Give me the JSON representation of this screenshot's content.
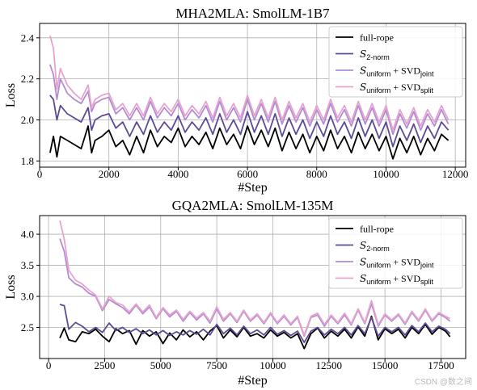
{
  "watermark": "CSDN @数之间",
  "colors": {
    "full-rope": "#000000",
    "s2norm": "#5e4a96",
    "joint": "#b38cd2",
    "split": "#e7a3cf",
    "grid": "#b0b0b0"
  },
  "chart_data": [
    {
      "type": "line",
      "title": "MHA2MLA: SmolLM-1B7",
      "xlabel": "#Step",
      "ylabel": "Loss",
      "xlim": [
        0,
        12300
      ],
      "ylim": [
        1.77,
        2.47
      ],
      "xticks": [
        0,
        2000,
        4000,
        6000,
        8000,
        10000,
        12000
      ],
      "yticks": [
        1.8,
        2.0,
        2.2,
        2.4
      ],
      "ytick_labels": [
        "1.8",
        "2.0",
        "2.2",
        "2.4"
      ],
      "grid": true,
      "legend": "top-right",
      "x": [
        300,
        400,
        500,
        600,
        800,
        1000,
        1200,
        1400,
        1500,
        1600,
        1800,
        2000,
        2200,
        2400,
        2600,
        2800,
        3000,
        3200,
        3400,
        3600,
        3800,
        4000,
        4200,
        4400,
        4600,
        4800,
        5000,
        5200,
        5400,
        5600,
        5800,
        6000,
        6200,
        6400,
        6600,
        6800,
        7000,
        7200,
        7400,
        7600,
        7800,
        8000,
        8200,
        8400,
        8600,
        8800,
        9000,
        9200,
        9400,
        9600,
        9800,
        10000,
        10200,
        10400,
        10600,
        10800,
        11000,
        11200,
        11400,
        11600,
        11800
      ],
      "series": [
        {
          "name": "full-rope",
          "color_key": "full-rope",
          "values": [
            1.84,
            1.92,
            1.82,
            1.92,
            1.9,
            1.88,
            1.86,
            1.97,
            1.84,
            1.9,
            1.92,
            1.95,
            1.87,
            1.9,
            1.83,
            1.92,
            1.84,
            1.95,
            1.87,
            1.92,
            1.89,
            1.96,
            1.87,
            1.92,
            1.88,
            1.94,
            1.86,
            1.96,
            1.88,
            1.93,
            1.86,
            1.97,
            1.88,
            1.95,
            1.87,
            1.96,
            1.85,
            1.94,
            1.86,
            1.93,
            1.84,
            1.92,
            1.85,
            1.95,
            1.86,
            1.92,
            1.84,
            1.94,
            1.86,
            1.93,
            1.85,
            1.92,
            1.81,
            1.91,
            1.84,
            1.92,
            1.83,
            1.91,
            1.85,
            1.93,
            1.9
          ]
        },
        {
          "name": "S2-norm",
          "legend_base": "S",
          "legend_sub": "2-norm",
          "legend_suffix": "",
          "legend_sub2": "",
          "color_key": "s2norm",
          "values": [
            2.12,
            2.1,
            2.0,
            2.07,
            2.03,
            2.01,
            1.99,
            2.06,
            1.95,
            2.0,
            2.02,
            2.03,
            1.96,
            1.99,
            1.92,
            1.99,
            1.93,
            2.02,
            1.94,
            1.99,
            1.95,
            2.02,
            1.94,
            1.99,
            1.95,
            2.01,
            1.93,
            2.03,
            1.94,
            2.0,
            1.93,
            2.04,
            1.94,
            2.02,
            1.93,
            2.03,
            1.92,
            2.01,
            1.93,
            2.0,
            1.91,
            1.99,
            1.92,
            2.02,
            1.93,
            1.99,
            1.91,
            2.01,
            1.92,
            2.0,
            1.91,
            1.99,
            1.87,
            1.97,
            1.9,
            1.98,
            1.89,
            1.97,
            1.91,
            1.99,
            1.95
          ]
        },
        {
          "name": "Suniform + SVDjoint",
          "legend_base": "S",
          "legend_sub": "uniform",
          "legend_suffix": " + SVD",
          "legend_sub2": "joint",
          "color_key": "joint",
          "values": [
            2.27,
            2.22,
            2.1,
            2.2,
            2.13,
            2.1,
            2.08,
            2.14,
            2.04,
            2.08,
            2.1,
            2.11,
            2.03,
            2.06,
            2.0,
            2.06,
            2.0,
            2.09,
            2.01,
            2.06,
            2.02,
            2.08,
            2.0,
            2.05,
            2.01,
            2.07,
            1.99,
            2.09,
            2.0,
            2.06,
            1.99,
            2.1,
            2.0,
            2.08,
            1.99,
            2.09,
            1.98,
            2.07,
            1.99,
            2.06,
            1.97,
            2.05,
            1.98,
            2.08,
            1.99,
            2.05,
            1.97,
            2.07,
            1.98,
            2.06,
            1.97,
            2.05,
            1.93,
            2.03,
            1.96,
            2.04,
            1.95,
            2.03,
            1.97,
            2.05,
            1.98
          ]
        },
        {
          "name": "Suniform + SVDsplit",
          "legend_base": "S",
          "legend_sub": "uniform",
          "legend_suffix": " + SVD",
          "legend_sub2": "split",
          "color_key": "split",
          "values": [
            2.41,
            2.35,
            2.15,
            2.25,
            2.17,
            2.13,
            2.1,
            2.17,
            2.06,
            2.1,
            2.12,
            2.13,
            2.05,
            2.08,
            2.02,
            2.08,
            2.02,
            2.11,
            2.03,
            2.08,
            2.04,
            2.1,
            2.02,
            2.07,
            2.03,
            2.09,
            2.01,
            2.11,
            2.02,
            2.08,
            2.01,
            2.12,
            2.02,
            2.1,
            2.01,
            2.11,
            2.0,
            2.09,
            2.01,
            2.08,
            1.99,
            2.07,
            2.0,
            2.1,
            2.01,
            2.07,
            1.99,
            2.09,
            2.0,
            2.08,
            1.99,
            2.07,
            1.95,
            2.05,
            1.98,
            2.06,
            1.97,
            2.05,
            1.99,
            2.07,
            2.0
          ]
        }
      ]
    },
    {
      "type": "line",
      "title": "GQA2MLA: SmolLM-135M",
      "xlabel": "#Step",
      "ylabel": "Loss",
      "xlim": [
        -400,
        18600
      ],
      "ylim": [
        2.0,
        4.3
      ],
      "xticks": [
        0,
        2500,
        5000,
        7500,
        10000,
        12500,
        15000,
        17500
      ],
      "yticks": [
        2.5,
        3.0,
        3.5,
        4.0
      ],
      "ytick_labels": [
        "2.5",
        "3.0",
        "3.5",
        "4.0"
      ],
      "grid": true,
      "legend": "top-right",
      "x": [
        500,
        700,
        900,
        1200,
        1500,
        1800,
        2100,
        2400,
        2700,
        3000,
        3300,
        3600,
        3900,
        4200,
        4500,
        4800,
        5100,
        5400,
        5700,
        6000,
        6300,
        6600,
        6900,
        7200,
        7500,
        7800,
        8100,
        8400,
        8700,
        9000,
        9300,
        9600,
        9900,
        10200,
        10500,
        10800,
        11100,
        11400,
        11700,
        12000,
        12300,
        12600,
        12900,
        13200,
        13500,
        13800,
        14100,
        14400,
        14700,
        15000,
        15300,
        15600,
        15900,
        16200,
        16500,
        16800,
        17100,
        17400,
        17700,
        17900
      ],
      "series": [
        {
          "name": "full-rope",
          "color_key": "full-rope",
          "values": [
            2.33,
            2.49,
            2.3,
            2.27,
            2.43,
            2.4,
            2.47,
            2.36,
            2.27,
            2.48,
            2.4,
            2.45,
            2.23,
            2.45,
            2.36,
            2.43,
            2.24,
            2.41,
            2.3,
            2.46,
            2.35,
            2.43,
            2.3,
            2.44,
            2.53,
            2.33,
            2.46,
            2.35,
            2.5,
            2.36,
            2.4,
            2.33,
            2.46,
            2.36,
            2.42,
            2.33,
            2.4,
            2.16,
            2.4,
            2.49,
            2.33,
            2.44,
            2.36,
            2.47,
            2.33,
            2.51,
            2.36,
            2.68,
            2.3,
            2.48,
            2.4,
            2.47,
            2.33,
            2.5,
            2.4,
            2.55,
            2.39,
            2.5,
            2.44,
            2.35
          ]
        },
        {
          "name": "S2-norm",
          "legend_base": "S",
          "legend_sub": "2-norm",
          "legend_suffix": "",
          "legend_sub2": "",
          "color_key": "s2norm",
          "values": [
            2.87,
            2.85,
            2.47,
            2.58,
            2.52,
            2.43,
            2.5,
            2.42,
            2.57,
            2.45,
            2.5,
            2.42,
            2.48,
            2.4,
            2.46,
            2.38,
            2.45,
            2.37,
            2.43,
            2.38,
            2.45,
            2.39,
            2.47,
            2.38,
            2.55,
            2.4,
            2.49,
            2.38,
            2.52,
            2.4,
            2.46,
            2.38,
            2.5,
            2.39,
            2.45,
            2.37,
            2.44,
            2.26,
            2.44,
            2.5,
            2.38,
            2.47,
            2.4,
            2.5,
            2.38,
            2.53,
            2.4,
            2.66,
            2.36,
            2.5,
            2.43,
            2.5,
            2.38,
            2.53,
            2.43,
            2.57,
            2.43,
            2.52,
            2.47,
            2.4
          ]
        },
        {
          "name": "Suniform + SVDjoint",
          "legend_base": "S",
          "legend_sub": "uniform",
          "legend_suffix": " + SVD",
          "legend_sub2": "joint",
          "color_key": "joint",
          "values": [
            3.93,
            3.72,
            3.3,
            3.2,
            3.15,
            3.05,
            3.0,
            2.77,
            2.95,
            2.88,
            2.82,
            2.72,
            2.86,
            2.72,
            2.83,
            2.64,
            2.8,
            2.67,
            2.76,
            2.6,
            2.74,
            2.62,
            2.72,
            2.57,
            2.8,
            2.6,
            2.72,
            2.58,
            2.76,
            2.6,
            2.7,
            2.56,
            2.72,
            2.56,
            2.68,
            2.54,
            2.66,
            2.36,
            2.66,
            2.7,
            2.52,
            2.68,
            2.56,
            2.7,
            2.54,
            2.78,
            2.56,
            2.88,
            2.52,
            2.7,
            2.6,
            2.7,
            2.55,
            2.74,
            2.6,
            2.78,
            2.6,
            2.72,
            2.66,
            2.6
          ]
        },
        {
          "name": "Suniform + SVDsplit",
          "legend_base": "S",
          "legend_sub": "uniform",
          "legend_suffix": " + SVD",
          "legend_sub2": "split",
          "color_key": "split",
          "values": [
            4.22,
            3.92,
            3.42,
            3.26,
            3.2,
            3.1,
            3.02,
            2.8,
            3.0,
            2.9,
            2.86,
            2.75,
            2.88,
            2.75,
            2.86,
            2.66,
            2.82,
            2.7,
            2.78,
            2.63,
            2.76,
            2.65,
            2.74,
            2.6,
            2.83,
            2.63,
            2.74,
            2.6,
            2.78,
            2.62,
            2.72,
            2.58,
            2.74,
            2.58,
            2.7,
            2.56,
            2.68,
            2.38,
            2.68,
            2.73,
            2.55,
            2.7,
            2.58,
            2.73,
            2.56,
            2.8,
            2.58,
            2.93,
            2.54,
            2.72,
            2.62,
            2.72,
            2.57,
            2.76,
            2.62,
            2.8,
            2.62,
            2.74,
            2.68,
            2.64
          ]
        }
      ]
    }
  ]
}
